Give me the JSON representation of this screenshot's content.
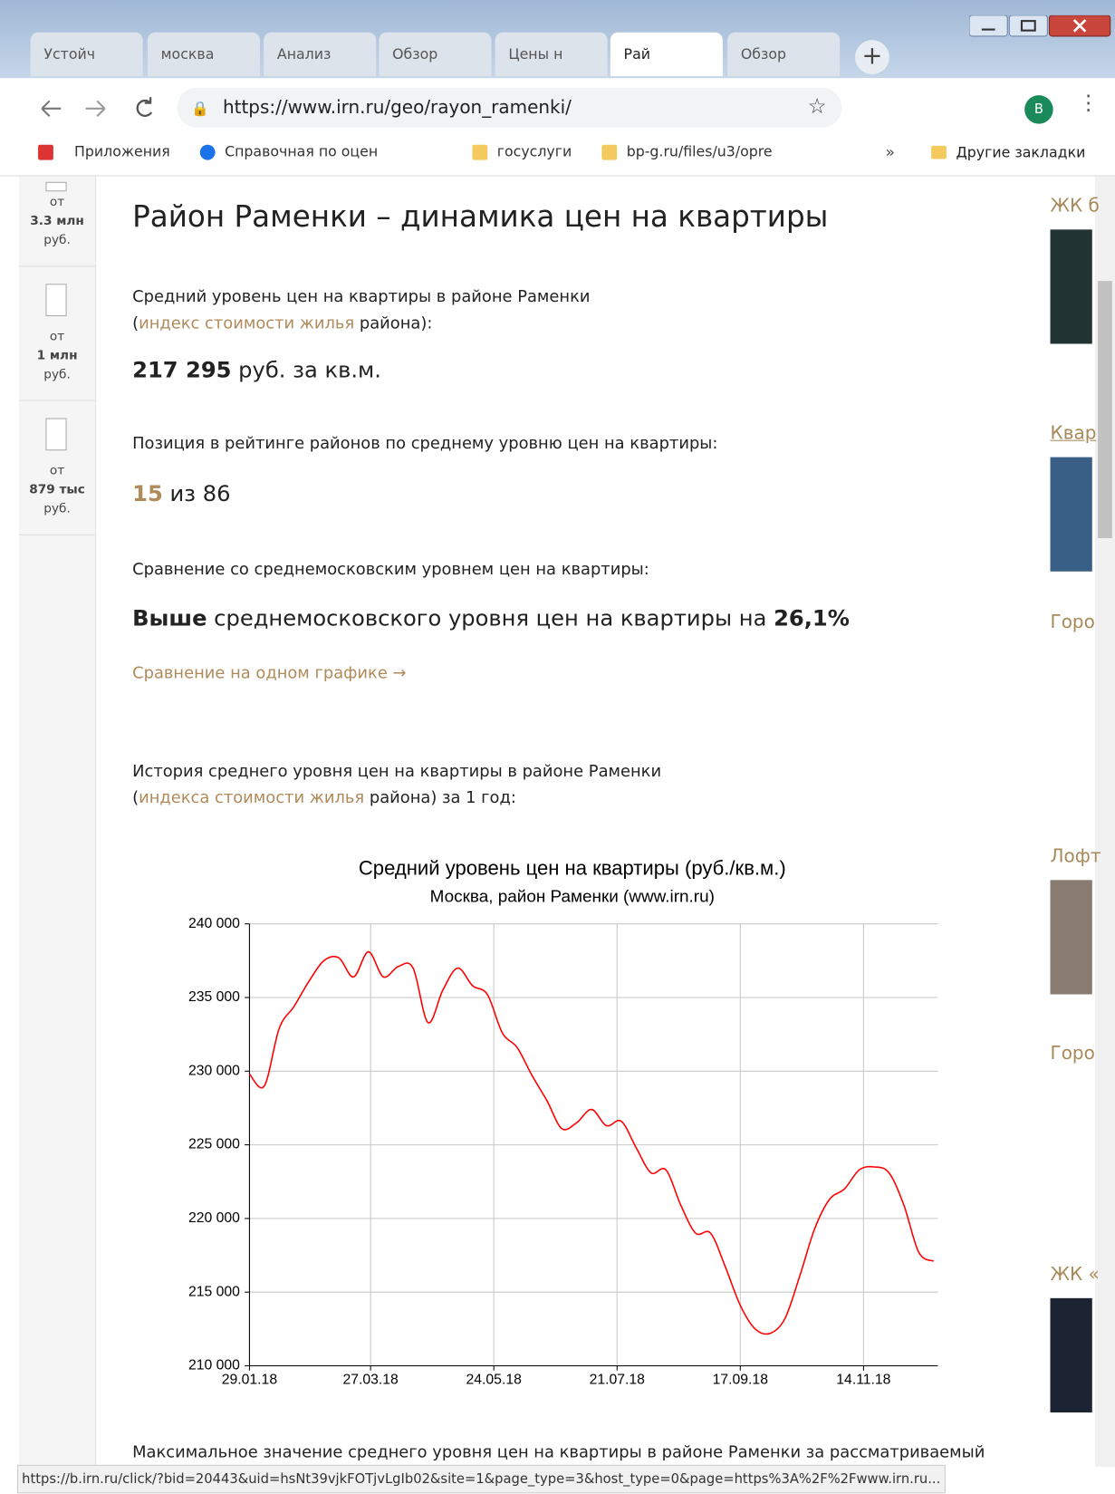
{
  "browser": {
    "tabs": [
      "Устойч",
      "москва",
      "Анализ",
      "Обзор",
      "Цены н",
      "Рай",
      "Обзор"
    ],
    "url": "https://www.irn.ru/geo/rayon_ramenki/",
    "profile": "B",
    "bookmarks": [
      "Приложения",
      "Справочная по оцен",
      "госуслуги",
      "bp-g.ru/files/u3/opre"
    ],
    "more": "»",
    "other_bookmarks": "Другие закладки"
  },
  "sidebar": [
    {
      "prefix": "от",
      "amount": "3.3 млн",
      "unit": "руб."
    },
    {
      "prefix": "от",
      "amount": "1 млн",
      "unit": "руб."
    },
    {
      "prefix": "от",
      "amount": "879 тыс",
      "unit": "руб."
    }
  ],
  "article": {
    "title": "Район Раменки – динамика цен на квартиры",
    "avg_intro": "Средний уровень цен на квартиры в районе Раменки",
    "avg_open": "(",
    "avg_link": "индекс стоимости жилья",
    "avg_close": " района):",
    "price_value": "217 295",
    "price_unit": " руб. за кв.м.",
    "rank_label": "Позиция в рейтинге районов по среднему уровню цен на квартиры:",
    "rank_value": "15",
    "rank_of": " из 86",
    "compare_label": "Сравнение со среднемосковским уровнем цен на квартиры:",
    "compare_bold": "Выше",
    "compare_text": " среднемосковского уровня цен на квартиры на ",
    "compare_percent": "26,1%",
    "compare_link": "Сравнение на одном графике →",
    "history_intro": "История среднего уровня цен на квартиры в районе Раменки",
    "history_open": "(",
    "history_link": "индекса стоимости жилья",
    "history_close": " района) за 1 год:",
    "footer_text": "Максимальное значение среднего уровня цен на квартиры в районе Раменки за рассматриваемый"
  },
  "right_column": [
    "ЖК б",
    "Квар",
    "Горо",
    "Лофт",
    "Горо",
    "ЖК «"
  ],
  "status_url": "https://b.irn.ru/click/?bid=20443&uid=hsNt39vjkFOTjvLgIb02&site=1&page_type=3&host_type=0&page=https%3A%2F%2Fwww.irn.ru...",
  "chart_data": {
    "type": "line",
    "title": "Средний уровень цен на квартиры (руб./кв.м.)",
    "subtitle": "Москва, район Раменки (www.irn.ru)",
    "x": [
      "29.01.18",
      "05.02.18",
      "12.02.18",
      "19.02.18",
      "26.02.18",
      "05.03.18",
      "12.03.18",
      "19.03.18",
      "26.03.18",
      "02.04.18",
      "09.04.18",
      "16.04.18",
      "23.04.18",
      "30.04.18",
      "07.05.18",
      "14.05.18",
      "21.05.18",
      "28.05.18",
      "04.06.18",
      "11.06.18",
      "18.06.18",
      "25.06.18",
      "02.07.18",
      "09.07.18",
      "16.07.18",
      "23.07.18",
      "30.07.18",
      "06.08.18",
      "13.08.18",
      "20.08.18",
      "27.08.18",
      "03.09.18",
      "10.09.18",
      "17.09.18",
      "24.09.18",
      "01.10.18",
      "08.10.18",
      "15.10.18",
      "22.10.18",
      "29.10.18",
      "05.11.18",
      "12.11.18",
      "19.11.18",
      "26.11.18",
      "03.12.18",
      "10.12.18",
      "17.12.18"
    ],
    "values": [
      229800,
      229000,
      232900,
      234400,
      236100,
      237500,
      237700,
      236400,
      238100,
      236400,
      237100,
      237000,
      233300,
      235500,
      237000,
      235800,
      235200,
      232600,
      231600,
      229700,
      228000,
      226100,
      226500,
      227400,
      226300,
      226600,
      224800,
      223100,
      223300,
      220900,
      219000,
      219000,
      216700,
      214100,
      212500,
      212200,
      213200,
      216100,
      219300,
      221300,
      222000,
      223300,
      223500,
      223100,
      220900,
      217700,
      217100
    ],
    "color": "#ff0000",
    "xlim": [
      "29.01.18",
      "19.12.18"
    ],
    "xticks": [
      "29.01.18",
      "27.03.18",
      "24.05.18",
      "21.07.18",
      "17.09.18",
      "14.11.18"
    ],
    "ylim": [
      210000,
      240000
    ],
    "yticks": [
      {
        "value": 210000,
        "label": "210 000"
      },
      {
        "value": 215000,
        "label": "215 000"
      },
      {
        "value": 220000,
        "label": "220 000"
      },
      {
        "value": 225000,
        "label": "225 000"
      },
      {
        "value": 230000,
        "label": "230 000"
      },
      {
        "value": 235000,
        "label": "235 000"
      },
      {
        "value": 240000,
        "label": "240 000"
      }
    ],
    "grid": true
  }
}
